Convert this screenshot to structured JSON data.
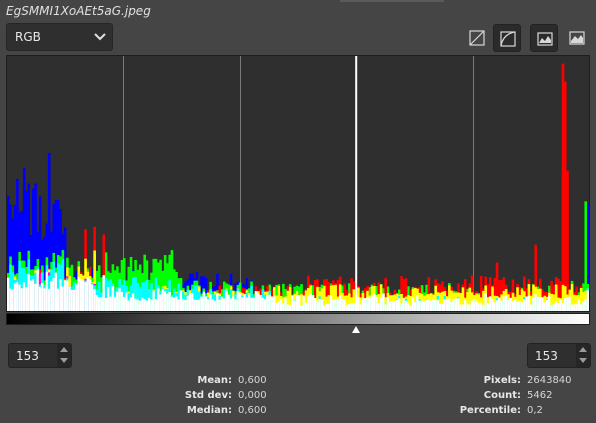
{
  "window": {
    "title": "EgSMMI1XoAEt5aG.jpeg"
  },
  "toolbar": {
    "channel": "RGB",
    "buttons": [
      {
        "name": "linear-histogram-icon",
        "active": false
      },
      {
        "name": "log-histogram-icon",
        "active": true
      },
      {
        "name": "perceptual-icon",
        "active": true
      },
      {
        "name": "gradient-icon",
        "active": false
      }
    ]
  },
  "histogram": {
    "cursor_value": 153,
    "range_low": 153,
    "range_high": 153
  },
  "stats": {
    "mean_label": "Mean:",
    "mean": "0,600",
    "stddev_label": "Std dev:",
    "stddev": "0,000",
    "median_label": "Median:",
    "median": "0,600",
    "pixels_label": "Pixels:",
    "pixels": "2643840",
    "count_label": "Count:",
    "count": "5462",
    "percentile_label": "Percentile:",
    "percentile": "0,2"
  },
  "colors": {
    "red": "#ff0000",
    "green": "#00ff00",
    "blue": "#0000ff",
    "yellow": "#ffff00",
    "magenta": "#ff00ff",
    "cyan": "#00ffff",
    "white": "#ffffff"
  }
}
